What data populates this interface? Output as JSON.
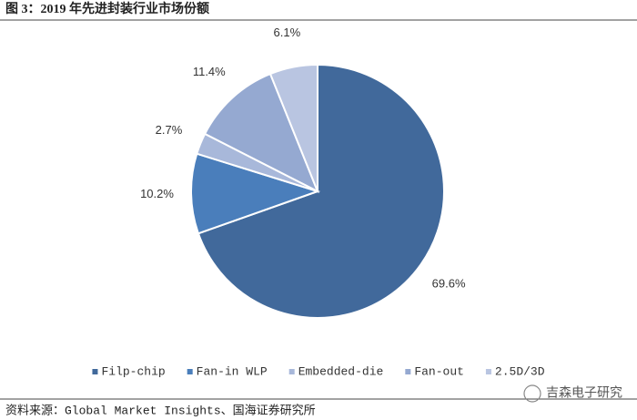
{
  "chart_data": {
    "type": "pie",
    "title": "图 3：2019 年先进封装行业市场份额",
    "categories": [
      "Filp-chip",
      "Fan-in WLP",
      "Embedded-die",
      "Fan-out",
      "2.5D/3D"
    ],
    "values": [
      69.6,
      10.2,
      2.7,
      11.4,
      6.1
    ],
    "value_labels": [
      "69.6%",
      "10.2%",
      "2.7%",
      "11.4%",
      "6.1%"
    ],
    "colors": [
      "#41699b",
      "#4a7ebb",
      "#a8b8da",
      "#95a9d1",
      "#b9c5e1"
    ],
    "legend": "bottom",
    "source": "资料来源：Global Market Insights、国海证券研究所",
    "watermark": "吉森电子研究"
  }
}
